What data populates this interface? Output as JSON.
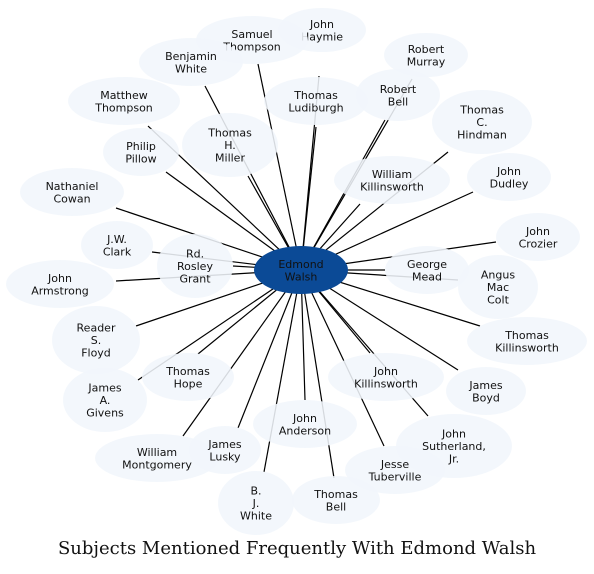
{
  "title": "Subjects Mentioned Frequently With Edmond Walsh",
  "colors": {
    "center_fill": "#0b4a96",
    "node_fill": "#f1f6fc",
    "edge": "#000000",
    "text": "#111111"
  },
  "center": {
    "id": "edmond-walsh",
    "lines": [
      "Edmond",
      "Walsh"
    ]
  },
  "nodes": [
    {
      "id": "john-haymie",
      "lines": [
        "John",
        "Haymie"
      ]
    },
    {
      "id": "samuel-thompson",
      "lines": [
        "Samuel",
        "Thompson"
      ]
    },
    {
      "id": "benjamin-white",
      "lines": [
        "Benjamin",
        "White"
      ]
    },
    {
      "id": "robert-murray",
      "lines": [
        "Robert",
        "Murray"
      ]
    },
    {
      "id": "thomas-ludiburgh",
      "lines": [
        "Thomas",
        "Ludiburgh"
      ]
    },
    {
      "id": "robert-bell",
      "lines": [
        "Robert",
        "Bell"
      ]
    },
    {
      "id": "matthew-thompson",
      "lines": [
        "Matthew",
        "Thompson"
      ]
    },
    {
      "id": "thomas-c-hindman",
      "lines": [
        "Thomas",
        "C.",
        "Hindman"
      ]
    },
    {
      "id": "thomas-h-miller",
      "lines": [
        "Thomas",
        "H.",
        "Miller"
      ]
    },
    {
      "id": "philip-pillow",
      "lines": [
        "Philip",
        "Pillow"
      ]
    },
    {
      "id": "william-killinsworth",
      "lines": [
        "William",
        "Killinsworth"
      ]
    },
    {
      "id": "john-dudley",
      "lines": [
        "John",
        "Dudley"
      ]
    },
    {
      "id": "nathaniel-cowan",
      "lines": [
        "Nathaniel",
        "Cowan"
      ]
    },
    {
      "id": "john-crozier",
      "lines": [
        "John",
        "Crozier"
      ]
    },
    {
      "id": "jw-clark",
      "lines": [
        "J.W.",
        "Clark"
      ]
    },
    {
      "id": "rd-rosley-grant",
      "lines": [
        "Rd.",
        "Rosley",
        "Grant"
      ]
    },
    {
      "id": "george-mead",
      "lines": [
        "George",
        "Mead"
      ]
    },
    {
      "id": "angus-mac-colt",
      "lines": [
        "Angus",
        "Mac",
        "Colt"
      ]
    },
    {
      "id": "john-armstrong",
      "lines": [
        "John",
        "Armstrong"
      ]
    },
    {
      "id": "reader-s-floyd",
      "lines": [
        "Reader",
        "S.",
        "Floyd"
      ]
    },
    {
      "id": "thomas-killinsworth",
      "lines": [
        "Thomas",
        "Killinsworth"
      ]
    },
    {
      "id": "thomas-hope",
      "lines": [
        "Thomas",
        "Hope"
      ]
    },
    {
      "id": "john-killinsworth",
      "lines": [
        "John",
        "Killinsworth"
      ]
    },
    {
      "id": "james-a-givens",
      "lines": [
        "James",
        "A.",
        "Givens"
      ]
    },
    {
      "id": "james-boyd",
      "lines": [
        "James",
        "Boyd"
      ]
    },
    {
      "id": "john-anderson",
      "lines": [
        "John",
        "Anderson"
      ]
    },
    {
      "id": "john-sutherland-jr",
      "lines": [
        "John",
        "Sutherland,",
        "Jr."
      ]
    },
    {
      "id": "william-montgomery",
      "lines": [
        "William",
        "Montgomery"
      ]
    },
    {
      "id": "james-lusky",
      "lines": [
        "James",
        "Lusky"
      ]
    },
    {
      "id": "jesse-tuberville",
      "lines": [
        "Jesse",
        "Tuberville"
      ]
    },
    {
      "id": "b-j-white",
      "lines": [
        "B.",
        "J.",
        "White"
      ]
    },
    {
      "id": "thomas-bell",
      "lines": [
        "Thomas",
        "Bell"
      ]
    }
  ]
}
